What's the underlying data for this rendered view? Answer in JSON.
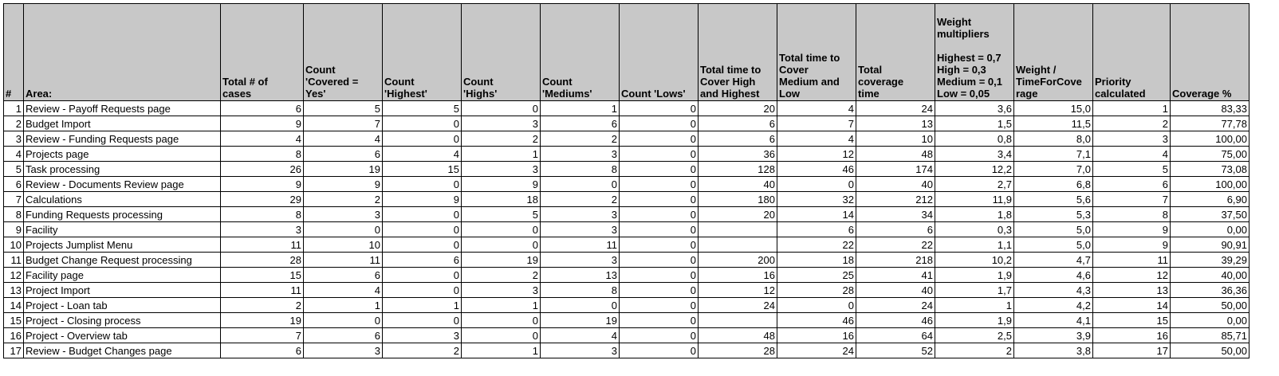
{
  "headers": [
    "#",
    "Area:",
    "Total # of\ncases",
    "Count\n'Covered =\nYes'",
    "Count\n'Highest'",
    "Count\n'Highs'",
    "Count\n'Mediums'",
    "Count 'Lows'",
    "Total time to\nCover High\nand Highest",
    "Total time to\nCover\nMedium and\nLow",
    "Total\ncoverage\ntime",
    "Weight\nmultipliers\n\nHighest = 0,7\nHigh = 0,3\nMedium = 0,1\nLow = 0,05",
    "Weight /\nTimeForCove\nrage",
    "Priority\ncalculated",
    "Coverage %"
  ],
  "rows": [
    [
      "1",
      "Review - Payoff Requests page",
      "6",
      "5",
      "5",
      "0",
      "1",
      "0",
      "20",
      "4",
      "24",
      "3,6",
      "15,0",
      "1",
      "83,33"
    ],
    [
      "2",
      "Budget Import",
      "9",
      "7",
      "0",
      "3",
      "6",
      "0",
      "6",
      "7",
      "13",
      "1,5",
      "11,5",
      "2",
      "77,78"
    ],
    [
      "3",
      "Review - Funding Requests page",
      "4",
      "4",
      "0",
      "2",
      "2",
      "0",
      "6",
      "4",
      "10",
      "0,8",
      "8,0",
      "3",
      "100,00"
    ],
    [
      "4",
      "Projects page",
      "8",
      "6",
      "4",
      "1",
      "3",
      "0",
      "36",
      "12",
      "48",
      "3,4",
      "7,1",
      "4",
      "75,00"
    ],
    [
      "5",
      "Task processing",
      "26",
      "19",
      "15",
      "3",
      "8",
      "0",
      "128",
      "46",
      "174",
      "12,2",
      "7,0",
      "5",
      "73,08"
    ],
    [
      "6",
      "Review - Documents Review page",
      "9",
      "9",
      "0",
      "9",
      "0",
      "0",
      "40",
      "0",
      "40",
      "2,7",
      "6,8",
      "6",
      "100,00"
    ],
    [
      "7",
      "Calculations",
      "29",
      "2",
      "9",
      "18",
      "2",
      "0",
      "180",
      "32",
      "212",
      "11,9",
      "5,6",
      "7",
      "6,90"
    ],
    [
      "8",
      "Funding Requests processing",
      "8",
      "3",
      "0",
      "5",
      "3",
      "0",
      "20",
      "14",
      "34",
      "1,8",
      "5,3",
      "8",
      "37,50"
    ],
    [
      "9",
      "Facility",
      "3",
      "0",
      "0",
      "0",
      "3",
      "0",
      "",
      "6",
      "6",
      "0,3",
      "5,0",
      "9",
      "0,00"
    ],
    [
      "10",
      "Projects Jumplist Menu",
      "11",
      "10",
      "0",
      "0",
      "11",
      "0",
      "",
      "22",
      "22",
      "1,1",
      "5,0",
      "9",
      "90,91"
    ],
    [
      "11",
      "Budget Change Request processing",
      "28",
      "11",
      "6",
      "19",
      "3",
      "0",
      "200",
      "18",
      "218",
      "10,2",
      "4,7",
      "11",
      "39,29"
    ],
    [
      "12",
      "Facility page",
      "15",
      "6",
      "0",
      "2",
      "13",
      "0",
      "16",
      "25",
      "41",
      "1,9",
      "4,6",
      "12",
      "40,00"
    ],
    [
      "13",
      "Project Import",
      "11",
      "4",
      "0",
      "3",
      "8",
      "0",
      "12",
      "28",
      "40",
      "1,7",
      "4,3",
      "13",
      "36,36"
    ],
    [
      "14",
      "Project - Loan tab",
      "2",
      "1",
      "1",
      "1",
      "0",
      "0",
      "24",
      "0",
      "24",
      "1",
      "4,2",
      "14",
      "50,00"
    ],
    [
      "15",
      "Project - Closing process",
      "19",
      "0",
      "0",
      "0",
      "19",
      "0",
      "",
      "46",
      "46",
      "1,9",
      "4,1",
      "15",
      "0,00"
    ],
    [
      "16",
      "Project - Overview tab",
      "7",
      "6",
      "3",
      "0",
      "4",
      "0",
      "48",
      "16",
      "64",
      "2,5",
      "3,9",
      "16",
      "85,71"
    ],
    [
      "17",
      "Review - Budget Changes page",
      "6",
      "3",
      "2",
      "1",
      "3",
      "0",
      "28",
      "24",
      "52",
      "2",
      "3,8",
      "17",
      "50,00"
    ]
  ]
}
